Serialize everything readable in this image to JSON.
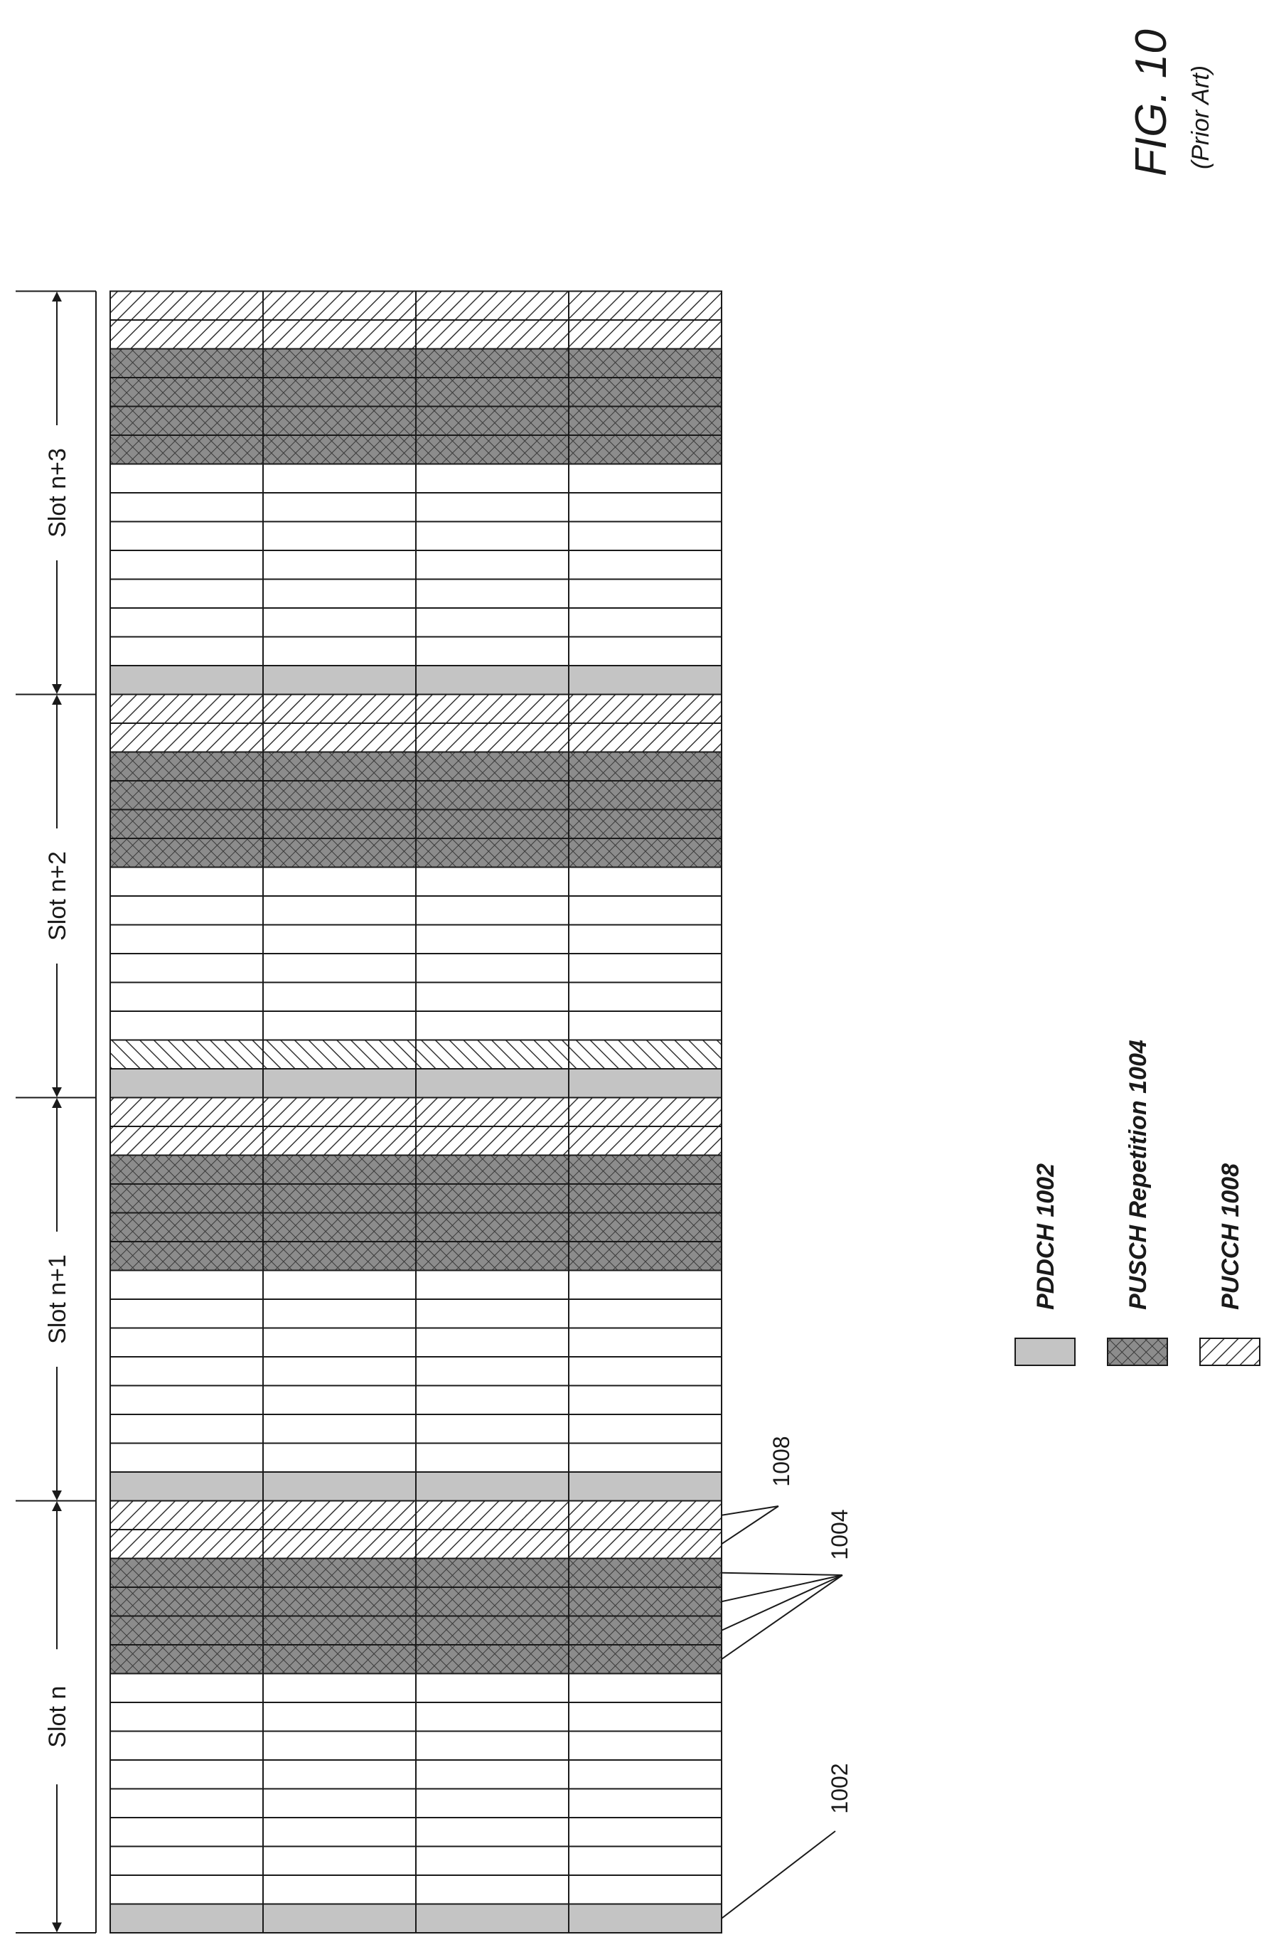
{
  "figure": {
    "title": "FIG. 10",
    "subtitle": "(Prior Art)"
  },
  "slots": [
    {
      "label": "Slot n",
      "rows": [
        "pdcch",
        "empty",
        "empty",
        "empty",
        "empty",
        "empty",
        "empty",
        "empty",
        "empty",
        "pusch",
        "pusch",
        "pusch",
        "pusch",
        "pucch",
        "pucch"
      ]
    },
    {
      "label": "Slot n+1",
      "rows": [
        "pdcch",
        "empty",
        "empty",
        "empty",
        "empty",
        "empty",
        "empty",
        "empty",
        "pusch",
        "pusch",
        "pusch",
        "pusch",
        "pucch",
        "pucch"
      ]
    },
    {
      "label": "Slot n+2",
      "rows": [
        "pdcch",
        "pucch_alt",
        "empty",
        "empty",
        "empty",
        "empty",
        "empty",
        "empty",
        "pusch",
        "pusch",
        "pusch",
        "pusch",
        "pucch",
        "pucch"
      ]
    },
    {
      "label": "Slot n+3",
      "rows": [
        "pdcch",
        "empty",
        "empty",
        "empty",
        "empty",
        "empty",
        "empty",
        "empty",
        "pusch",
        "pusch",
        "pusch",
        "pusch",
        "pucch",
        "pucch"
      ]
    }
  ],
  "columns": 4,
  "references": {
    "pdcch": "1002",
    "pusch": "1004",
    "pucch": "1008"
  },
  "legend": [
    {
      "key": "pdcch",
      "label": "PDDCH 1002"
    },
    {
      "key": "pusch",
      "label": "PUSCH Repetition 1004"
    },
    {
      "key": "pucch",
      "label": "PUCCH 1008"
    }
  ],
  "colors": {
    "pdcch": "#c4c4c4",
    "pusch": "#8c8c8c",
    "line": "#1a1a1a"
  }
}
